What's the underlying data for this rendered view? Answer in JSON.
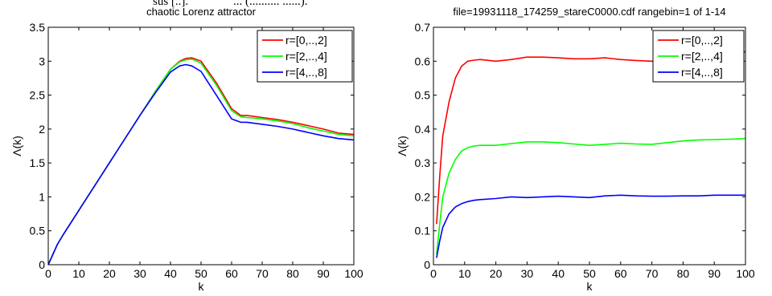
{
  "caption": {
    "left": "sus [..].",
    "right": "... (.......... ......)."
  },
  "chart_data": [
    {
      "type": "line",
      "title": "chaotic Lorenz attractor",
      "xlabel": "k",
      "ylabel": "Λ(k)",
      "xlim": [
        0,
        100
      ],
      "ylim": [
        0,
        3.5
      ],
      "xticks": [
        "0",
        "10",
        "20",
        "30",
        "40",
        "50",
        "60",
        "70",
        "80",
        "90",
        "100"
      ],
      "yticks": [
        "0",
        "0.5",
        "1",
        "1.5",
        "2",
        "2.5",
        "3",
        "3.5"
      ],
      "grid": false,
      "legend_position": "top-right",
      "x": [
        0,
        1,
        3,
        5,
        10,
        15,
        20,
        25,
        30,
        35,
        40,
        43,
        45,
        47,
        50,
        55,
        60,
        63,
        65,
        70,
        75,
        80,
        85,
        90,
        95,
        100
      ],
      "series": [
        {
          "name": "r=[0,..,2]",
          "color": "#ff0000",
          "values": [
            0,
            0.1,
            0.3,
            0.45,
            0.8,
            1.15,
            1.5,
            1.85,
            2.2,
            2.55,
            2.88,
            3.0,
            3.04,
            3.05,
            3.0,
            2.68,
            2.3,
            2.2,
            2.2,
            2.17,
            2.14,
            2.1,
            2.05,
            2.0,
            1.94,
            1.92
          ]
        },
        {
          "name": "r=[2,..,4]",
          "color": "#00ff00",
          "values": [
            0,
            0.1,
            0.3,
            0.45,
            0.8,
            1.15,
            1.5,
            1.85,
            2.2,
            2.55,
            2.88,
            2.99,
            3.02,
            3.03,
            2.97,
            2.65,
            2.27,
            2.18,
            2.17,
            2.15,
            2.12,
            2.08,
            2.02,
            1.97,
            1.92,
            1.9
          ]
        },
        {
          "name": "r=[4,..,8]",
          "color": "#0000ff",
          "values": [
            0,
            0.1,
            0.3,
            0.45,
            0.8,
            1.15,
            1.5,
            1.85,
            2.2,
            2.53,
            2.84,
            2.93,
            2.95,
            2.93,
            2.85,
            2.5,
            2.15,
            2.1,
            2.1,
            2.07,
            2.04,
            2.0,
            1.95,
            1.9,
            1.86,
            1.84
          ]
        }
      ]
    },
    {
      "type": "line",
      "title": "file=19931118_174259_stareC0000.cdf rangebin=1 of 1-14",
      "xlabel": "k",
      "ylabel": "Λ(k)",
      "xlim": [
        0,
        100
      ],
      "ylim": [
        0,
        0.7
      ],
      "xticks": [
        "0",
        "10",
        "20",
        "30",
        "40",
        "50",
        "60",
        "70",
        "80",
        "90",
        "100"
      ],
      "yticks": [
        "0",
        "0.1",
        "0.2",
        "0.3",
        "0.4",
        "0.5",
        "0.6",
        "0.7"
      ],
      "grid": false,
      "legend_position": "top-right",
      "x": [
        1,
        2,
        3,
        5,
        7,
        9,
        11,
        13,
        15,
        20,
        25,
        30,
        35,
        40,
        45,
        50,
        55,
        60,
        65,
        70,
        75,
        80,
        85,
        90,
        95,
        100
      ],
      "series": [
        {
          "name": "r=[0,..,2]",
          "color": "#ff0000",
          "values": [
            0.12,
            0.26,
            0.38,
            0.48,
            0.55,
            0.585,
            0.6,
            0.603,
            0.605,
            0.6,
            0.605,
            0.612,
            0.612,
            0.61,
            0.607,
            0.607,
            0.61,
            0.605,
            0.602,
            0.6,
            0.6,
            0.605,
            0.61,
            0.615,
            0.62,
            0.628
          ]
        },
        {
          "name": "r=[2,..,4]",
          "color": "#00ff00",
          "values": [
            0.03,
            0.12,
            0.2,
            0.27,
            0.31,
            0.335,
            0.345,
            0.35,
            0.352,
            0.352,
            0.357,
            0.362,
            0.362,
            0.36,
            0.356,
            0.352,
            0.355,
            0.358,
            0.356,
            0.355,
            0.36,
            0.365,
            0.368,
            0.369,
            0.37,
            0.372
          ]
        },
        {
          "name": "r=[4,..,8]",
          "color": "#0000ff",
          "values": [
            0.02,
            0.07,
            0.11,
            0.15,
            0.17,
            0.18,
            0.186,
            0.19,
            0.192,
            0.195,
            0.2,
            0.198,
            0.2,
            0.202,
            0.2,
            0.198,
            0.203,
            0.205,
            0.203,
            0.202,
            0.202,
            0.203,
            0.203,
            0.205,
            0.205,
            0.205
          ]
        }
      ]
    }
  ]
}
